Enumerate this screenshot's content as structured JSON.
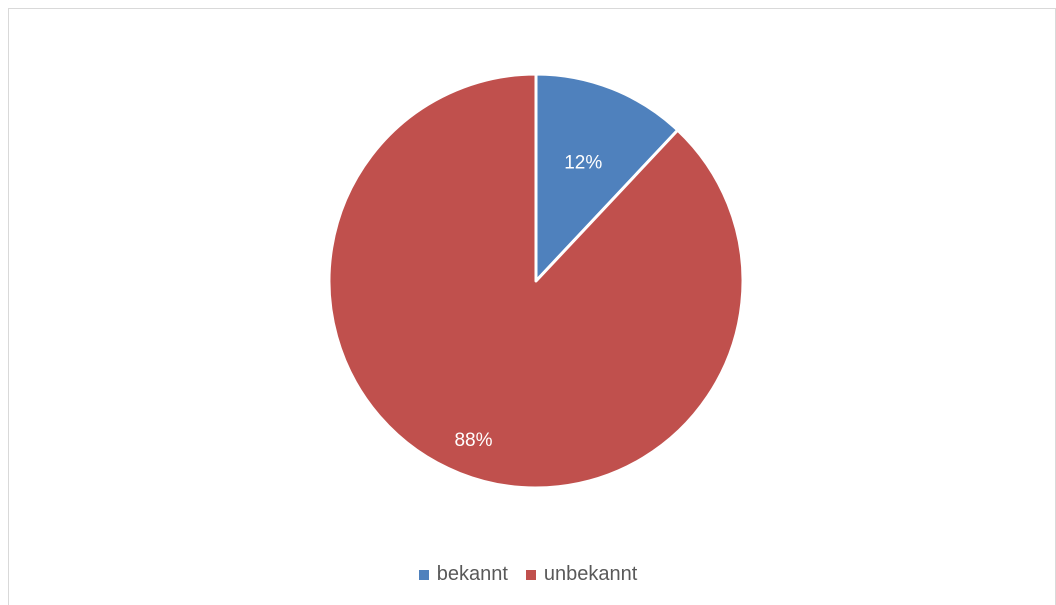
{
  "chart_data": {
    "type": "pie",
    "categories": [
      "bekannt",
      "unbekannt"
    ],
    "values": [
      12,
      88
    ],
    "data_labels": [
      "12%",
      "88%"
    ],
    "colors": [
      "#4f81bd",
      "#c0504d"
    ],
    "legend_placement": "bottom"
  }
}
